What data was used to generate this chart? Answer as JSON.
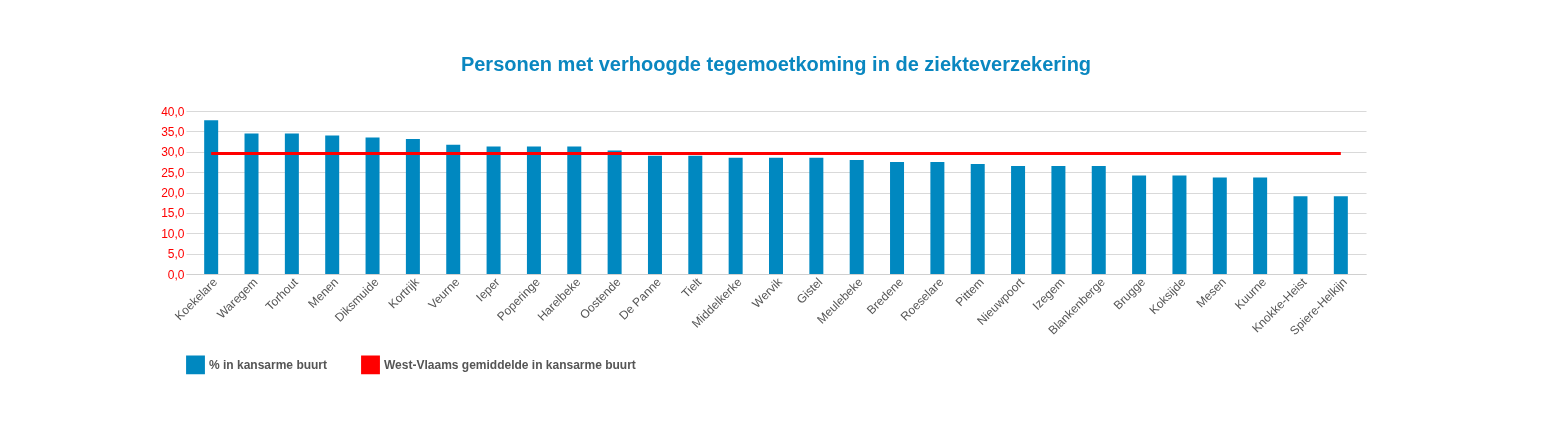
{
  "chart_data": {
    "type": "bar",
    "title": "Personen met verhoogde tegemoetkoming in de ziekteverzekering",
    "categories": [
      "Koekelare",
      "Waregem",
      "Torhout",
      "Menen",
      "Diksmuide",
      "Kortrijk",
      "Veurne",
      "Ieper",
      "Poperinge",
      "Harelbeke",
      "Oostende",
      "De Panne",
      "Tielt",
      "Middelkerke",
      "Wervik",
      "Gistel",
      "Meulebeke",
      "Bredene",
      "Roeselare",
      "Pittem",
      "Nieuwpoort",
      "Izegem",
      "Blankenberge",
      "Brugge",
      "Koksijde",
      "Mesen",
      "Kuurne",
      "Knokke-Heist",
      "Spiere-Helkijn"
    ],
    "series": [
      {
        "name": "% in kansarme buurt",
        "color": "#0088c0",
        "values": [
          37.7,
          34.5,
          34.5,
          34.0,
          33.5,
          33.1,
          31.7,
          31.3,
          31.3,
          31.3,
          30.3,
          29.0,
          29.0,
          28.5,
          28.5,
          28.5,
          28.0,
          27.5,
          27.5,
          27.0,
          26.5,
          26.5,
          26.5,
          24.2,
          24.2,
          23.7,
          23.7,
          19.1,
          19.1
        ]
      },
      {
        "name": "West-Vlaams gemiddelde in kansarme buurt",
        "type": "line",
        "color": "#ff0000",
        "values": [
          29.6,
          29.6,
          29.6,
          29.6,
          29.6,
          29.6,
          29.6,
          29.6,
          29.6,
          29.6,
          29.6,
          29.6,
          29.6,
          29.6,
          29.6,
          29.6,
          29.6,
          29.6,
          29.6,
          29.6,
          29.6,
          29.6,
          29.6,
          29.6,
          29.6,
          29.6,
          29.6,
          29.6,
          29.6
        ]
      }
    ],
    "ylim": [
      0,
      40
    ],
    "yticks": [
      {
        "value": 0,
        "label": "0,0"
      },
      {
        "value": 5,
        "label": "5,0"
      },
      {
        "value": 10,
        "label": "10,0"
      },
      {
        "value": 15,
        "label": "15,0"
      },
      {
        "value": 20,
        "label": "20,0"
      },
      {
        "value": 25,
        "label": "25,0"
      },
      {
        "value": 30,
        "label": "30,0"
      },
      {
        "value": 35,
        "label": "35,0"
      },
      {
        "value": 40,
        "label": "40,0"
      }
    ],
    "grid": "y",
    "legend": "bottom"
  }
}
